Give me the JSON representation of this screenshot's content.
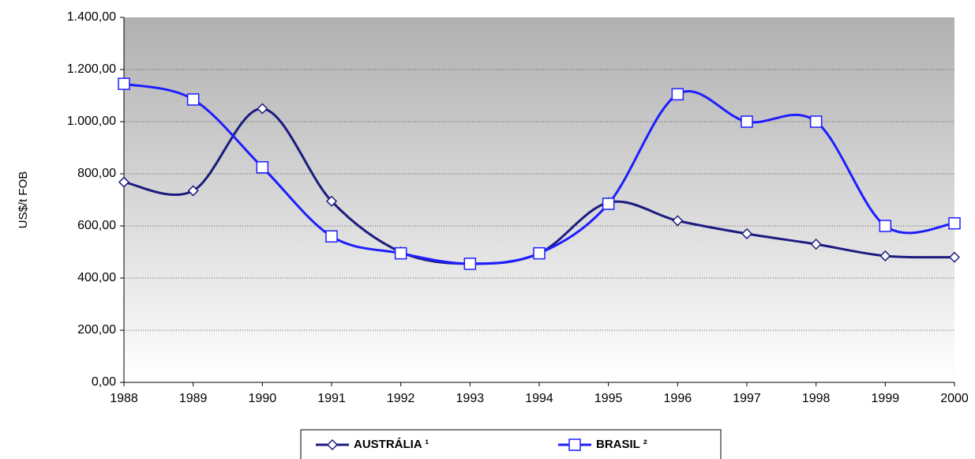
{
  "chart_data": {
    "type": "line",
    "y_label": "US$/t FOB",
    "x": [
      1988,
      1989,
      1990,
      1991,
      1992,
      1993,
      1994,
      1995,
      1996,
      1997,
      1998,
      1999,
      2000
    ],
    "xlim": [
      1988,
      2000
    ],
    "xticks": [
      1988,
      1989,
      1990,
      1991,
      1992,
      1993,
      1994,
      1995,
      1996,
      1997,
      1998,
      1999,
      2000
    ],
    "ylim": [
      0,
      1400
    ],
    "yticks": [
      {
        "value": 0,
        "label": "0,00"
      },
      {
        "value": 200,
        "label": "200,00"
      },
      {
        "value": 400,
        "label": "400,00"
      },
      {
        "value": 600,
        "label": "600,00"
      },
      {
        "value": 800,
        "label": "800,00"
      },
      {
        "value": 1000,
        "label": "1.000,00"
      },
      {
        "value": 1200,
        "label": "1.200,00"
      },
      {
        "value": 1400,
        "label": "1.400,00"
      }
    ],
    "grid": true,
    "legend": "bottom",
    "series": [
      {
        "name": "AUSTRÁLIA ¹",
        "color": "#1c1c80",
        "marker": "diamond",
        "values": [
          768,
          735,
          1050,
          695,
          500,
          455,
          495,
          690,
          620,
          570,
          530,
          485,
          480
        ]
      },
      {
        "name": "BRASIL ²",
        "color": "#1e1eff",
        "marker": "square",
        "values": [
          1145,
          1085,
          825,
          560,
          495,
          455,
          495,
          685,
          1105,
          1000,
          1000,
          600,
          610
        ]
      }
    ]
  }
}
